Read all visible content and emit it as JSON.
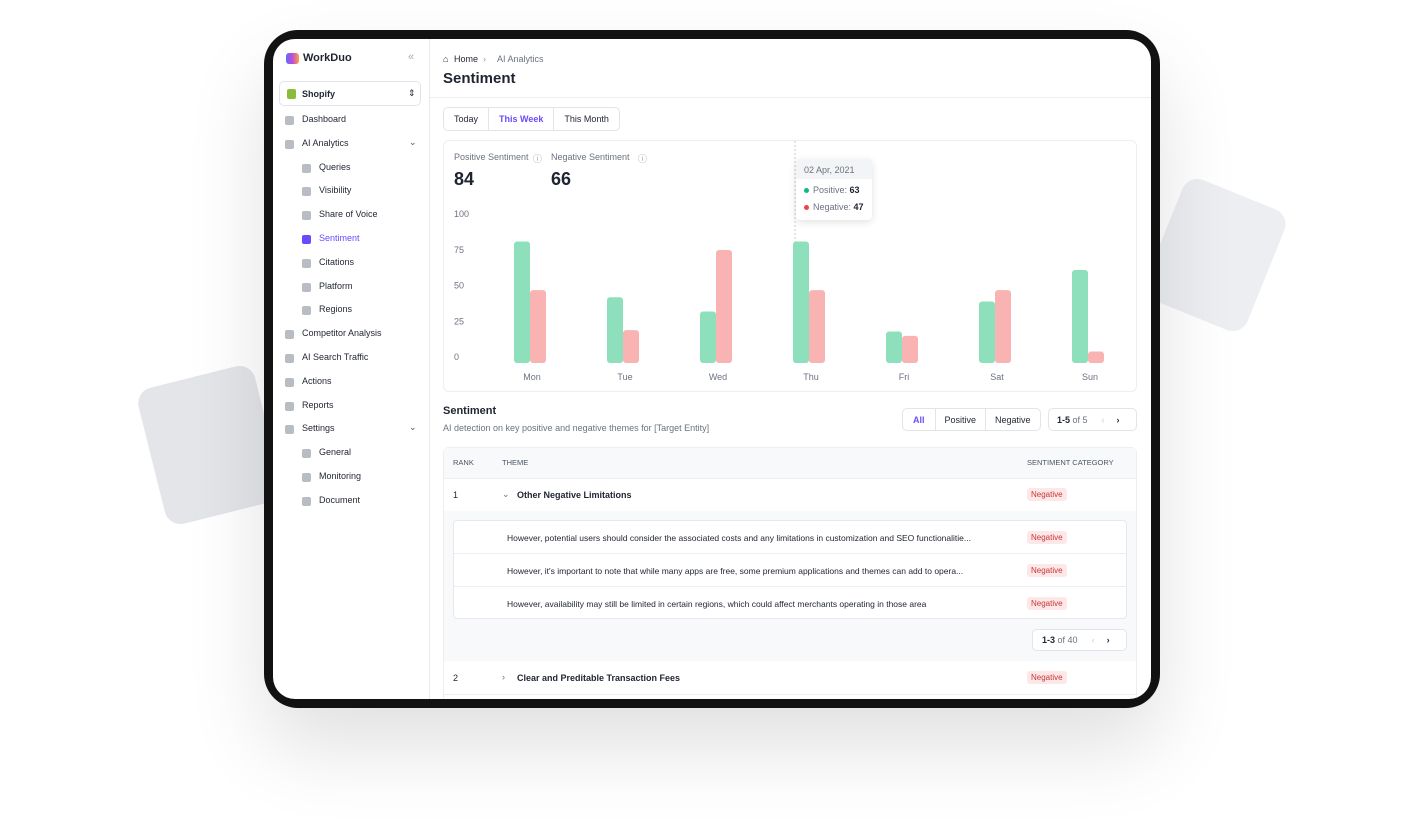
{
  "sidebar": {
    "brand": "WorkDuo",
    "workspace": "Shopify",
    "nav": [
      {
        "label": "Dashboard",
        "level": 0
      },
      {
        "label": "AI Analytics",
        "level": 0
      },
      {
        "label": "Queries",
        "level": 1
      },
      {
        "label": "Visibility",
        "level": 1
      },
      {
        "label": "Share of Voice",
        "level": 1
      },
      {
        "label": "Sentiment",
        "level": 1,
        "active": true
      },
      {
        "label": "Citations",
        "level": 1
      },
      {
        "label": "Platform",
        "level": 1
      },
      {
        "label": "Regions",
        "level": 1
      },
      {
        "label": "Competitor Analysis",
        "level": 0
      },
      {
        "label": "AI Search Traffic",
        "level": 0
      },
      {
        "label": "Actions",
        "level": 0
      },
      {
        "label": "Reports",
        "level": 0
      },
      {
        "label": "Settings",
        "level": 0
      },
      {
        "label": "General",
        "level": 1
      },
      {
        "label": "Monitoring",
        "level": 1
      },
      {
        "label": "Document",
        "level": 1
      }
    ]
  },
  "header": {
    "breadcrumb": [
      "Home",
      "AI Analytics"
    ],
    "title": "Sentiment"
  },
  "tabs": [
    "Today",
    "This Week",
    "This Month"
  ],
  "stats": [
    {
      "label": "Positive Sentiment",
      "value": 84
    },
    {
      "label": "Negative Sentiment",
      "value": 66
    }
  ],
  "chart_data": {
    "type": "bar",
    "categories": [
      "Mon",
      "Tue",
      "Wed",
      "Thu",
      "Fri",
      "Sat",
      "Sun"
    ],
    "series": [
      {
        "color": "#8ee0bd",
        "values": [
          85,
          46,
          36,
          85,
          22,
          43,
          65
        ]
      },
      {
        "color": "#f8b3b2",
        "values": [
          51,
          23,
          79,
          51,
          19,
          51,
          8
        ]
      }
    ],
    "ylim": [
      0,
      100
    ],
    "yticks": [
      0,
      25,
      50,
      75,
      100
    ],
    "grid": false
  },
  "tooltip": {
    "date": "02 Apr, 2021",
    "items": [
      {
        "label": "Positive:",
        "value": 63
      },
      {
        "label": "Negative:",
        "value": 47
      }
    ]
  },
  "section": {
    "title": "Sentiment",
    "subtitle": "AI detection on key positive and negative themes for [Target Entity]",
    "filters": [
      "All",
      "Positive",
      "Negative"
    ],
    "pagination": {
      "range": "1-5",
      "total": "of 5"
    }
  },
  "table": {
    "headers": [
      "RANK",
      "THEME",
      "SENTIMENT CATEGORY"
    ],
    "rows": [
      {
        "rank": 1,
        "theme": "Other Negative Limitations",
        "category": "Negative",
        "details": [
          {
            "text": "However, potential users should consider the associated costs and any limitations in customization and SEO functionalitie...",
            "category": "Negative"
          },
          {
            "text": "However, it's important to note that while many apps are free, some premium applications and themes can add to opera...",
            "category": "Negative"
          },
          {
            "text": "However, availability may still be limited in certain regions, which could affect merchants operating in those area",
            "category": "Negative"
          }
        ],
        "pagination": {
          "range": "1-3",
          "total": "of 40"
        }
      },
      {
        "rank": 2,
        "theme": "Clear and Preditable Transaction Fees",
        "category": "Negative"
      }
    ]
  }
}
